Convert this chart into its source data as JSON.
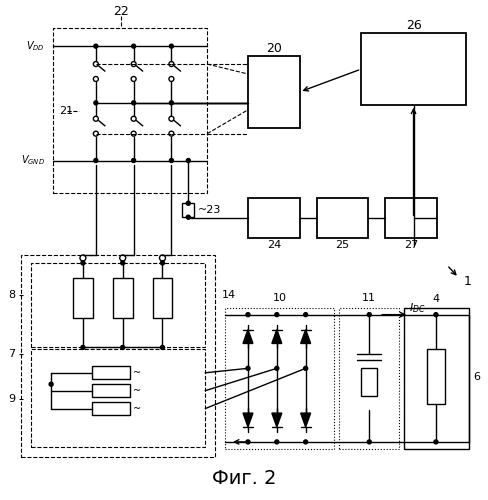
{
  "title": "Фиг. 2",
  "bg_color": "#ffffff",
  "label_22": "22",
  "label_20": "20",
  "label_26": "26",
  "label_21": "21",
  "label_23": "~23",
  "label_24": "24",
  "label_25": "25",
  "label_27": "27",
  "label_1": "1",
  "label_8": "8",
  "label_7": "7",
  "label_9": "9",
  "label_14": "14",
  "label_10": "10",
  "label_11": "11",
  "label_4": "4",
  "label_6": "6"
}
